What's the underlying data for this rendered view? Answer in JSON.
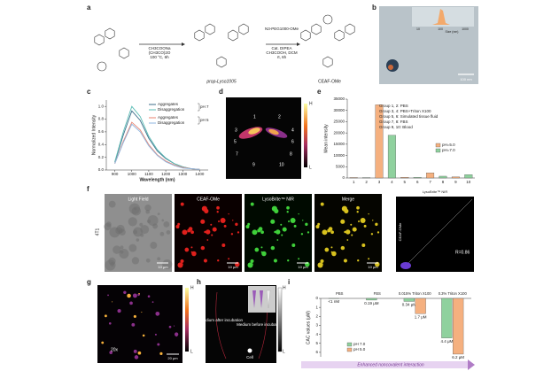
{
  "scheme": {
    "panel": "a",
    "conditions_1": [
      "CH3COONa",
      "(CH3CO)2O",
      "100 °C, 6h"
    ],
    "conditions_2": [
      "N3-PEG1000-OMe",
      "Cat. DIPEA",
      "CH3COOH, DCM",
      "rt, 6h"
    ],
    "compounds": [
      "prop-Lyso1005",
      "CEAF-OMe"
    ]
  },
  "tem": {
    "panel": "b",
    "inset_xlabel": "Size (nm)",
    "inset_ticks": [
      "10",
      "100",
      "1000"
    ],
    "scale_bar": "100 nm"
  },
  "imaging_d": {
    "panel": "d",
    "regions": [
      "1",
      "2",
      "3",
      "4",
      "5",
      "6",
      "7",
      "8",
      "9",
      "10"
    ],
    "colorbar": [
      "H",
      "L"
    ]
  },
  "microscopy_f": {
    "panel": "f",
    "cell_line": "4T1",
    "channels": [
      "Light Field",
      "CEAF-OMe",
      "LysoBrite™ NIR",
      "Merge"
    ],
    "scale_bars": [
      "10 μm",
      "10 μm",
      "10 μm",
      "10 μm"
    ],
    "coloc_x": "LysoBrite™ NIR",
    "coloc_y": "CEAF-OMe",
    "coloc_r": "R=0.86"
  },
  "imaging_g": {
    "panel": "g",
    "magnification": "20x",
    "scale_bar": "20 μm",
    "colorbar": [
      "H",
      "L"
    ]
  },
  "imaging_h": {
    "panel": "h",
    "labels": [
      "Medium after incubation",
      "Medium before incubation",
      "Cell"
    ],
    "colorbar": [
      "H",
      "L"
    ]
  },
  "chart_data": [
    {
      "type": "line",
      "panel": "c",
      "xlabel": "Wavelength (nm)",
      "ylabel": "Normalized Intensity",
      "x": [
        900,
        950,
        1000,
        1050,
        1100,
        1150,
        1200,
        1250,
        1300,
        1350,
        1400
      ],
      "xlim": [
        850,
        1450
      ],
      "xticks": [
        900,
        1000,
        1100,
        1200,
        1300,
        1400
      ],
      "ylim": [
        0,
        1.1
      ],
      "yticks": [
        {
          "value": 0,
          "label": "0.0"
        },
        0.2,
        0.4,
        0.6,
        0.8,
        {
          "value": 1,
          "label": "1.0"
        }
      ],
      "legend_groups": [
        "pH 7",
        "pH 5"
      ],
      "series": [
        {
          "name": "Aggregates",
          "color": "#3d6e8a",
          "values": [
            0.12,
            0.55,
            0.93,
            0.78,
            0.5,
            0.3,
            0.18,
            0.1,
            0.05,
            0.02,
            0.01
          ]
        },
        {
          "name": "Disaggregation",
          "color": "#5bbdb5",
          "values": [
            0.13,
            0.6,
            1.0,
            0.84,
            0.53,
            0.32,
            0.19,
            0.1,
            0.05,
            0.02,
            0.01
          ]
        },
        {
          "name": "Aggregates",
          "color": "#e8836f",
          "values": [
            0.1,
            0.45,
            0.75,
            0.63,
            0.4,
            0.24,
            0.14,
            0.08,
            0.04,
            0.02,
            0.01
          ]
        },
        {
          "name": "Disaggregation",
          "color": "#8fb6e0",
          "values": [
            0.1,
            0.43,
            0.72,
            0.6,
            0.38,
            0.23,
            0.13,
            0.07,
            0.03,
            0.02,
            0.01
          ]
        }
      ]
    },
    {
      "type": "bar",
      "panel": "e",
      "ylabel": "Mean intensity",
      "categories": [
        "1",
        "2",
        "3",
        "4",
        "5",
        "6",
        "7",
        "8",
        "9",
        "10"
      ],
      "ylim": [
        0,
        35000
      ],
      "yticks": [
        0,
        5000,
        10000,
        15000,
        20000,
        25000,
        30000,
        35000
      ],
      "annotations": [
        "Group 1, 2: PBS",
        "Group 3, 4: PBS+Triton X100",
        "Group 5, 6: Simulated tissue fluid",
        "Group 7, 8: FBS",
        "Group 9, 10: Blood"
      ],
      "series": [
        {
          "name": "pH=5.0",
          "color": "#f5b07f",
          "values": [
            200,
            null,
            32500,
            null,
            300,
            null,
            2300,
            null,
            500,
            null
          ]
        },
        {
          "name": "pH=7.0",
          "color": "#8fd19e",
          "values": [
            null,
            150,
            null,
            19000,
            null,
            250,
            null,
            800,
            null,
            1500
          ]
        }
      ]
    },
    {
      "type": "bar",
      "panel": "i",
      "ylabel": "CAC values (μM)",
      "inverted": true,
      "categories": [
        "PBS",
        "FBS",
        "0.015% Triton X100",
        "0.3% Triton X100"
      ],
      "ylim": [
        0,
        6.5
      ],
      "yticks": [
        0,
        1,
        2,
        3,
        4,
        5,
        6
      ],
      "annotation": "Enhanced noncovalent interaction",
      "series": [
        {
          "name": "pH 7.0",
          "color": "#8fd19e",
          "values": [
            0.001,
            0.19,
            0.34,
            4.4
          ],
          "value_labels": [
            "<1 nM",
            "0.19 μM",
            "0.34 μM",
            "4.4 μM"
          ]
        },
        {
          "name": "pH 5.0",
          "color": "#f5b07f",
          "values": [
            null,
            null,
            1.7,
            6.2
          ],
          "value_labels": [
            null,
            null,
            "1.7 μM",
            "6.2 μM"
          ]
        }
      ]
    }
  ]
}
